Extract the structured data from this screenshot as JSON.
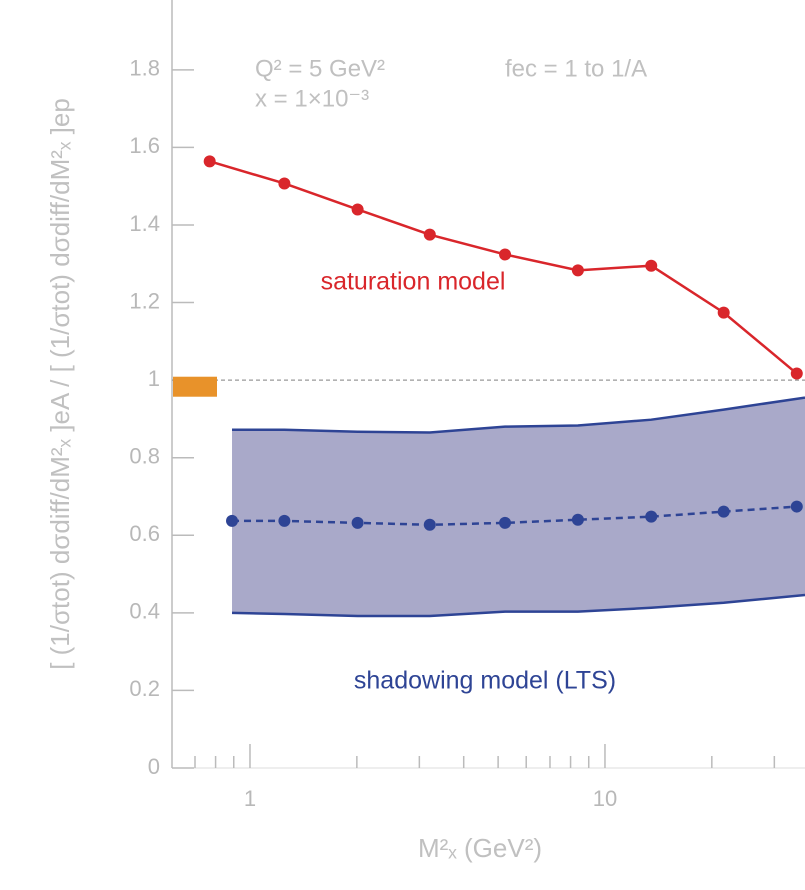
{
  "chart_data": {
    "type": "line",
    "xlabel": "M²ₓ (GeV²)",
    "ylabel": "[ (1/σtot) dσdiff/dM²ₓ ]eA / [ (1/σtot) dσdiff/dM²ₓ ]ep",
    "annotations": [
      "Q² = 5 GeV²",
      "x = 1×10⁻³",
      "fec = 1 to 1/A"
    ],
    "xscale": "log",
    "xlim": [
      0.603,
      36.6
    ],
    "ylim": [
      0,
      1.98
    ],
    "xticks": [
      1,
      10
    ],
    "xminorticks": [
      0.7,
      0.8,
      0.9,
      2,
      3,
      4,
      5,
      6,
      7,
      8,
      9,
      20,
      30
    ],
    "yticks": [
      0,
      0.2,
      0.4,
      0.6,
      0.8,
      1,
      1.2,
      1.4,
      1.6,
      1.8
    ],
    "reference_line": 1,
    "reference_marker": {
      "value": 0.983,
      "color": "#e8922a"
    },
    "series": [
      {
        "name": "saturation model",
        "color": "#d9262b",
        "x": [
          0.77,
          1.25,
          2.01,
          3.21,
          5.23,
          8.39,
          13.5,
          21.6,
          34.7
        ],
        "values": [
          1.564,
          1.507,
          1.44,
          1.375,
          1.324,
          1.283,
          1.295,
          1.174,
          1.017
        ]
      },
      {
        "name": "shadowing model (LTS)",
        "color": "#2e4495",
        "x": [
          0.89,
          1.25,
          2.01,
          3.21,
          5.23,
          8.39,
          13.5,
          21.6,
          34.7
        ],
        "values": [
          0.637,
          0.637,
          0.632,
          0.627,
          0.632,
          0.64,
          0.648,
          0.661,
          0.674
        ]
      }
    ],
    "band": {
      "color": "#a9a9c9",
      "x": [
        0.89,
        1.25,
        2.01,
        3.21,
        5.23,
        8.39,
        13.5,
        21.6,
        36.6
      ],
      "upper": [
        0.872,
        0.872,
        0.867,
        0.865,
        0.88,
        0.883,
        0.898,
        0.924,
        0.955
      ],
      "lower": [
        0.4,
        0.397,
        0.392,
        0.392,
        0.403,
        0.403,
        0.413,
        0.426,
        0.446
      ]
    }
  }
}
